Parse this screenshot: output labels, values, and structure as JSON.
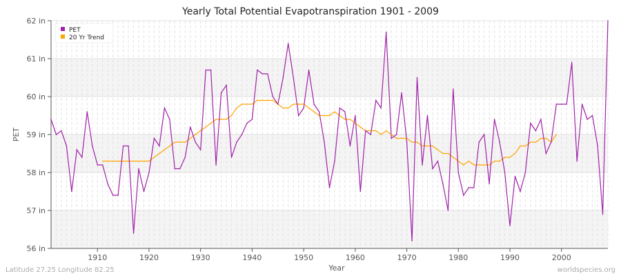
{
  "chart_data": {
    "type": "line",
    "title": "Yearly Total Potential Evapotranspiration 1901 - 2009",
    "xlabel": "Year",
    "ylabel": "PET",
    "xlim": [
      1901,
      2009
    ],
    "ylim": [
      56,
      62
    ],
    "x_ticks": [
      1910,
      1920,
      1930,
      1940,
      1950,
      1960,
      1970,
      1980,
      1990,
      2000
    ],
    "y_ticks": [
      56,
      57,
      58,
      59,
      60,
      61,
      62
    ],
    "y_tick_labels": [
      "56 in",
      "57 in",
      "58 in",
      "59 in",
      "60 in",
      "61 in",
      "62 in"
    ],
    "grid": true,
    "legend_position": "top-left",
    "series": [
      {
        "name": "PET",
        "color": "#a020a8",
        "x_start": 1901,
        "values": [
          59.4,
          59.0,
          59.1,
          58.7,
          57.5,
          58.6,
          58.4,
          59.6,
          58.7,
          58.2,
          58.2,
          57.7,
          57.4,
          57.4,
          58.7,
          58.7,
          56.4,
          58.1,
          57.5,
          58.0,
          58.9,
          58.7,
          59.7,
          59.4,
          58.1,
          58.1,
          58.4,
          59.2,
          58.8,
          58.6,
          60.7,
          60.7,
          58.2,
          60.1,
          60.3,
          58.4,
          58.8,
          59.0,
          59.3,
          59.4,
          60.7,
          60.6,
          60.6,
          60.0,
          59.8,
          60.5,
          61.4,
          60.5,
          59.5,
          59.7,
          60.7,
          59.8,
          59.6,
          58.8,
          57.6,
          58.3,
          59.7,
          59.6,
          58.7,
          59.5,
          57.5,
          59.1,
          59.0,
          59.9,
          59.7,
          61.7,
          58.9,
          59.0,
          60.1,
          58.8,
          56.2,
          60.5,
          58.2,
          59.5,
          58.1,
          58.3,
          57.7,
          57.0,
          60.2,
          58.0,
          57.4,
          57.6,
          57.6,
          58.8,
          59.0,
          57.7,
          59.4,
          58.8,
          58.0,
          56.6,
          57.9,
          57.5,
          58.0,
          59.3,
          59.1,
          59.4,
          58.5,
          58.8,
          59.8,
          59.8,
          59.8,
          60.9,
          58.3,
          59.8,
          59.4,
          59.5,
          58.7,
          56.9,
          62.0
        ]
      },
      {
        "name": "20 Yr Trend",
        "color": "#ffa500",
        "x_start": 1911,
        "values": [
          58.3,
          58.3,
          58.3,
          58.3,
          58.3,
          58.3,
          58.3,
          58.3,
          58.3,
          58.3,
          58.4,
          58.5,
          58.6,
          58.7,
          58.8,
          58.8,
          58.8,
          58.9,
          59.0,
          59.1,
          59.2,
          59.3,
          59.4,
          59.4,
          59.4,
          59.5,
          59.7,
          59.8,
          59.8,
          59.8,
          59.9,
          59.9,
          59.9,
          59.9,
          59.8,
          59.7,
          59.7,
          59.8,
          59.8,
          59.8,
          59.7,
          59.6,
          59.5,
          59.5,
          59.5,
          59.6,
          59.5,
          59.4,
          59.4,
          59.3,
          59.2,
          59.1,
          59.1,
          59.1,
          59.0,
          59.1,
          59.0,
          58.9,
          58.9,
          58.9,
          58.8,
          58.8,
          58.7,
          58.7,
          58.7,
          58.6,
          58.5,
          58.5,
          58.4,
          58.3,
          58.2,
          58.3,
          58.2,
          58.2,
          58.2,
          58.2,
          58.3,
          58.3,
          58.4,
          58.4,
          58.5,
          58.7,
          58.7,
          58.8,
          58.8,
          58.9,
          58.9,
          58.8,
          59.0
        ]
      }
    ]
  },
  "footer": {
    "location": "Latitude 27.25 Longitude 82.25",
    "source": "worldspecies.org"
  }
}
